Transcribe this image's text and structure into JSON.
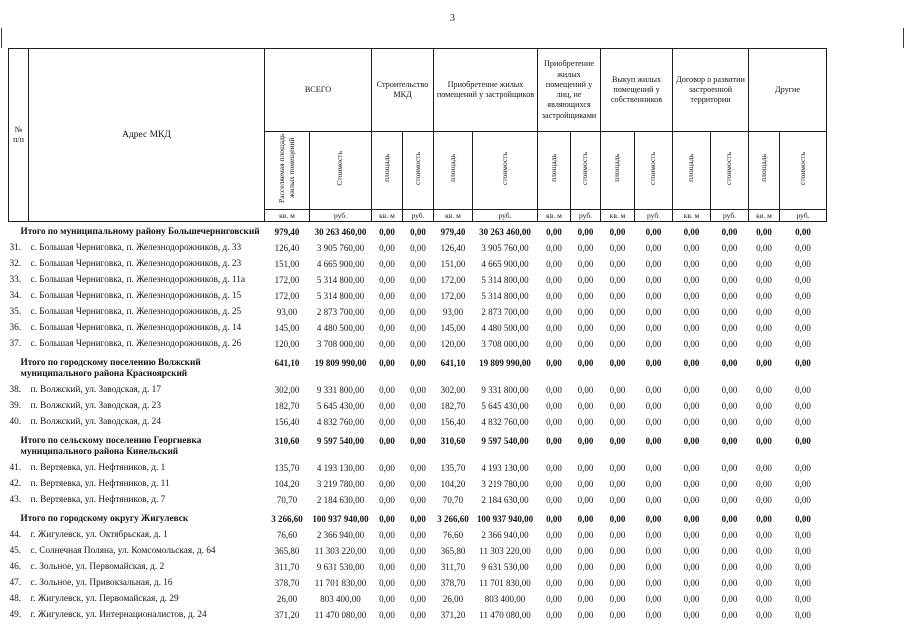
{
  "page": {
    "number": "3"
  },
  "table": {
    "col_headers": {
      "num": "№\nп/п",
      "address": "Адрес МКД",
      "groups": [
        {
          "label": "ВСЕГО",
          "sub": [
            "Расселяемая площадь жилых помещений",
            "Стоимость"
          ]
        },
        {
          "label": "Строительство МКД",
          "sub": [
            "площадь",
            "стоимость"
          ]
        },
        {
          "label": "Приобретение жилых помещений у застройщиков",
          "sub": [
            "площадь",
            "стоимость"
          ]
        },
        {
          "label": "Приобретение жилых помещений у лиц, не являющихся застройщиками",
          "sub": [
            "площадь",
            "стоимость"
          ]
        },
        {
          "label": "Выкуп жилых помещений у собственников",
          "sub": [
            "площадь",
            "стоимость"
          ]
        },
        {
          "label": "Договор о развитии застроенной территории",
          "sub": [
            "площадь",
            "стоимость"
          ]
        },
        {
          "label": "Другие",
          "sub": [
            "площадь",
            "стоимость"
          ]
        }
      ],
      "units": [
        "кв. м",
        "руб.",
        "кв. м",
        "руб.",
        "кв. м",
        "руб.",
        "кв. м",
        "руб.",
        "кв. м",
        "руб.",
        "кв. м",
        "руб.",
        "кв. м",
        "руб."
      ]
    },
    "rows": [
      {
        "type": "total",
        "num": "",
        "address": "Итого по муниципальному району Большечерниговский",
        "values": [
          "979,40",
          "30 263 460,00",
          "0,00",
          "0,00",
          "979,40",
          "30 263 460,00",
          "0,00",
          "0,00",
          "0,00",
          "0,00",
          "0,00",
          "0,00",
          "0,00",
          "0,00"
        ]
      },
      {
        "type": "item",
        "num": "31.",
        "address": "с. Большая Черниговка, п. Железнодорожников, д. 33",
        "values": [
          "126,40",
          "3 905 760,00",
          "0,00",
          "0,00",
          "126,40",
          "3 905 760,00",
          "0,00",
          "0,00",
          "0,00",
          "0,00",
          "0,00",
          "0,00",
          "0,00",
          "0,00"
        ]
      },
      {
        "type": "item",
        "num": "32.",
        "address": "с. Большая Черниговка, п. Железнодорожников, д. 23",
        "values": [
          "151,00",
          "4 665 900,00",
          "0,00",
          "0,00",
          "151,00",
          "4 665 900,00",
          "0,00",
          "0,00",
          "0,00",
          "0,00",
          "0,00",
          "0,00",
          "0,00",
          "0,00"
        ]
      },
      {
        "type": "item",
        "num": "33.",
        "address": "с. Большая Черниговка, п. Железнодорожников, д. 11а",
        "values": [
          "172,00",
          "5 314 800,00",
          "0,00",
          "0,00",
          "172,00",
          "5 314 800,00",
          "0,00",
          "0,00",
          "0,00",
          "0,00",
          "0,00",
          "0,00",
          "0,00",
          "0,00"
        ]
      },
      {
        "type": "item",
        "num": "34.",
        "address": "с. Большая Черниговка, п. Железнодорожников, д. 15",
        "values": [
          "172,00",
          "5 314 800,00",
          "0,00",
          "0,00",
          "172,00",
          "5 314 800,00",
          "0,00",
          "0,00",
          "0,00",
          "0,00",
          "0,00",
          "0,00",
          "0,00",
          "0,00"
        ]
      },
      {
        "type": "item",
        "num": "35.",
        "address": "с. Большая Черниговка, п. Железнодорожников, д. 25",
        "values": [
          "93,00",
          "2 873 700,00",
          "0,00",
          "0,00",
          "93,00",
          "2 873 700,00",
          "0,00",
          "0,00",
          "0,00",
          "0,00",
          "0,00",
          "0,00",
          "0,00",
          "0,00"
        ]
      },
      {
        "type": "item",
        "num": "36.",
        "address": "с. Большая Черниговка, п. Железнодорожников, д. 14",
        "values": [
          "145,00",
          "4 480 500,00",
          "0,00",
          "0,00",
          "145,00",
          "4 480 500,00",
          "0,00",
          "0,00",
          "0,00",
          "0,00",
          "0,00",
          "0,00",
          "0,00",
          "0,00"
        ]
      },
      {
        "type": "item",
        "num": "37.",
        "address": "с. Большая Черниговка, п. Железнодорожников, д. 26",
        "values": [
          "120,00",
          "3 708 000,00",
          "0,00",
          "0,00",
          "120,00",
          "3 708 000,00",
          "0,00",
          "0,00",
          "0,00",
          "0,00",
          "0,00",
          "0,00",
          "0,00",
          "0,00"
        ]
      },
      {
        "type": "total",
        "num": "",
        "address": "Итого по городскому поселению Волжский муниципального района Красноярский",
        "values": [
          "641,10",
          "19 809 990,00",
          "0,00",
          "0,00",
          "641,10",
          "19 809 990,00",
          "0,00",
          "0,00",
          "0,00",
          "0,00",
          "0,00",
          "0,00",
          "0,00",
          "0,00"
        ]
      },
      {
        "type": "item",
        "num": "38.",
        "address": "п. Волжский, ул. Заводская, д. 17",
        "values": [
          "302,00",
          "9 331 800,00",
          "0,00",
          "0,00",
          "302,00",
          "9 331 800,00",
          "0,00",
          "0,00",
          "0,00",
          "0,00",
          "0,00",
          "0,00",
          "0,00",
          "0,00"
        ]
      },
      {
        "type": "item",
        "num": "39.",
        "address": "п. Волжский, ул. Заводская, д. 23",
        "values": [
          "182,70",
          "5 645 430,00",
          "0,00",
          "0,00",
          "182,70",
          "5 645 430,00",
          "0,00",
          "0,00",
          "0,00",
          "0,00",
          "0,00",
          "0,00",
          "0,00",
          "0,00"
        ]
      },
      {
        "type": "item",
        "num": "40.",
        "address": "п. Волжский, ул. Заводская, д. 24",
        "values": [
          "156,40",
          "4 832 760,00",
          "0,00",
          "0,00",
          "156,40",
          "4 832 760,00",
          "0,00",
          "0,00",
          "0,00",
          "0,00",
          "0,00",
          "0,00",
          "0,00",
          "0,00"
        ]
      },
      {
        "type": "total",
        "num": "",
        "address": "Итого по сельскому поселению Георгиевка муниципального района Кинельский",
        "values": [
          "310,60",
          "9 597 540,00",
          "0,00",
          "0,00",
          "310,60",
          "9 597 540,00",
          "0,00",
          "0,00",
          "0,00",
          "0,00",
          "0,00",
          "0,00",
          "0,00",
          "0,00"
        ]
      },
      {
        "type": "item",
        "num": "41.",
        "address": "п. Вертяевка, ул. Нефтяников, д. 1",
        "values": [
          "135,70",
          "4 193 130,00",
          "0,00",
          "0,00",
          "135,70",
          "4 193 130,00",
          "0,00",
          "0,00",
          "0,00",
          "0,00",
          "0,00",
          "0,00",
          "0,00",
          "0,00"
        ]
      },
      {
        "type": "item",
        "num": "42.",
        "address": "п. Вертяевка, ул. Нефтяников, д. 11",
        "values": [
          "104,20",
          "3 219 780,00",
          "0,00",
          "0,00",
          "104,20",
          "3 219 780,00",
          "0,00",
          "0,00",
          "0,00",
          "0,00",
          "0,00",
          "0,00",
          "0,00",
          "0,00"
        ]
      },
      {
        "type": "item",
        "num": "43.",
        "address": "п. Вертяевка, ул. Нефтяников, д. 7",
        "values": [
          "70,70",
          "2 184 630,00",
          "0,00",
          "0,00",
          "70,70",
          "2 184 630,00",
          "0,00",
          "0,00",
          "0,00",
          "0,00",
          "0,00",
          "0,00",
          "0,00",
          "0,00"
        ]
      },
      {
        "type": "total",
        "num": "",
        "address": "Итого по городскому округу Жигулевск",
        "values": [
          "3 266,60",
          "100 937 940,00",
          "0,00",
          "0,00",
          "3 266,60",
          "100 937 940,00",
          "0,00",
          "0,00",
          "0,00",
          "0,00",
          "0,00",
          "0,00",
          "0,00",
          "0,00"
        ]
      },
      {
        "type": "item",
        "num": "44.",
        "address": "г. Жигулевск, ул. Октябрьская, д. 1",
        "values": [
          "76,60",
          "2 366 940,00",
          "0,00",
          "0,00",
          "76,60",
          "2 366 940,00",
          "0,00",
          "0,00",
          "0,00",
          "0,00",
          "0,00",
          "0,00",
          "0,00",
          "0,00"
        ]
      },
      {
        "type": "item",
        "num": "45.",
        "address": "с. Солнечная Поляна, ул. Комсомольская, д. 64",
        "values": [
          "365,80",
          "11 303 220,00",
          "0,00",
          "0,00",
          "365,80",
          "11 303 220,00",
          "0,00",
          "0,00",
          "0,00",
          "0,00",
          "0,00",
          "0,00",
          "0,00",
          "0,00"
        ]
      },
      {
        "type": "item",
        "num": "46.",
        "address": "с. Зольное, ул. Первомайская, д. 2",
        "values": [
          "311,70",
          "9 631 530,00",
          "0,00",
          "0,00",
          "311,70",
          "9 631 530,00",
          "0,00",
          "0,00",
          "0,00",
          "0,00",
          "0,00",
          "0,00",
          "0,00",
          "0,00"
        ]
      },
      {
        "type": "item",
        "num": "47.",
        "address": "с. Зольное, ул. Привокзальная, д. 16",
        "values": [
          "378,70",
          "11 701 830,00",
          "0,00",
          "0,00",
          "378,70",
          "11 701 830,00",
          "0,00",
          "0,00",
          "0,00",
          "0,00",
          "0,00",
          "0,00",
          "0,00",
          "0,00"
        ]
      },
      {
        "type": "item",
        "num": "48.",
        "address": "г. Жигулевск, ул. Первомайская, д. 29",
        "values": [
          "26,00",
          "803 400,00",
          "0,00",
          "0,00",
          "26,00",
          "803 400,00",
          "0,00",
          "0,00",
          "0,00",
          "0,00",
          "0,00",
          "0,00",
          "0,00",
          "0,00"
        ]
      },
      {
        "type": "item",
        "num": "49.",
        "address": "г. Жигулевск, ул. Интернационалистов, д. 24",
        "values": [
          "371,20",
          "11 470 080,00",
          "0,00",
          "0,00",
          "371,20",
          "11 470 080,00",
          "0,00",
          "0,00",
          "0,00",
          "0,00",
          "0,00",
          "0,00",
          "0,00",
          "0,00"
        ]
      }
    ]
  }
}
